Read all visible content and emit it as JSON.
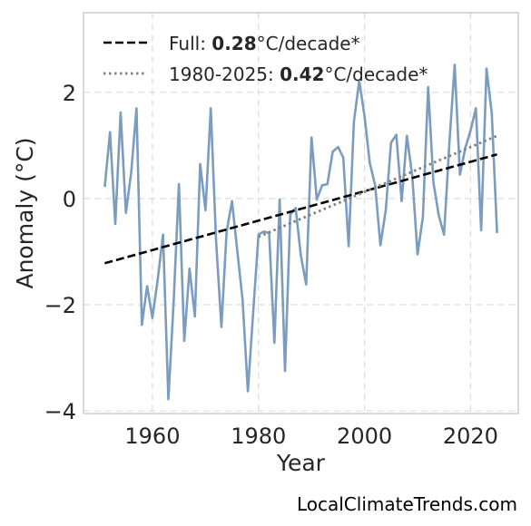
{
  "chart_data": {
    "type": "line",
    "xlabel": "Year",
    "ylabel": "Anomaly (°C)",
    "xlim": [
      1947,
      2029
    ],
    "ylim": [
      -4.05,
      3.5
    ],
    "xticks": [
      1960,
      1980,
      2000,
      2020
    ],
    "yticks": [
      -4,
      -2,
      0,
      2
    ],
    "ytick_labels": [
      "−4",
      "−2",
      "0",
      "2"
    ],
    "grid": true,
    "legend_placement": "top-left",
    "series": [
      {
        "kind": "anomaly",
        "color": "#7b9cbf",
        "x": [
          1951,
          1952,
          1953,
          1954,
          1955,
          1956,
          1957,
          1958,
          1959,
          1960,
          1961,
          1962,
          1963,
          1964,
          1965,
          1966,
          1967,
          1968,
          1969,
          1970,
          1971,
          1972,
          1973,
          1974,
          1975,
          1976,
          1977,
          1978,
          1979,
          1980,
          1981,
          1982,
          1983,
          1984,
          1985,
          1986,
          1987,
          1988,
          1989,
          1990,
          1991,
          1992,
          1993,
          1994,
          1995,
          1996,
          1997,
          1998,
          1999,
          2000,
          2001,
          2002,
          2003,
          2004,
          2005,
          2006,
          2007,
          2008,
          2009,
          2010,
          2011,
          2012,
          2013,
          2014,
          2015,
          2016,
          2017,
          2018,
          2019,
          2020,
          2021,
          2022,
          2023,
          2024,
          2025
        ],
        "y": [
          0.22,
          1.25,
          -0.48,
          1.62,
          -0.27,
          0.5,
          1.7,
          -2.38,
          -1.65,
          -2.25,
          -1.52,
          -0.68,
          -3.78,
          -1.95,
          0.27,
          -2.68,
          -1.32,
          -2.22,
          0.65,
          -0.22,
          1.7,
          -0.78,
          -2.42,
          -0.62,
          -0.05,
          -0.98,
          -1.9,
          -3.63,
          -2.15,
          -0.68,
          -0.62,
          -0.65,
          -2.72,
          -0.02,
          -3.25,
          -0.3,
          -0.18,
          -1.08,
          -1.62,
          1.15,
          -0.02,
          0.25,
          0.27,
          0.88,
          0.97,
          0.77,
          -0.9,
          1.45,
          2.22,
          1.55,
          0.67,
          0.25,
          -0.88,
          -0.22,
          1.05,
          1.2,
          -0.05,
          1.18,
          0.42,
          -1.05,
          -0.35,
          2.1,
          0.3,
          -0.32,
          -0.68,
          1.05,
          2.52,
          0.45,
          0.95,
          1.28,
          1.7,
          -0.6,
          2.45,
          1.6,
          -0.65
        ]
      },
      {
        "kind": "trend",
        "color": "#000000",
        "dash": "dashed",
        "x": [
          1951,
          2025
        ],
        "y": [
          -1.22,
          0.83
        ],
        "legend_label": "Full: ",
        "legend_value": "0.28",
        "legend_unit": "°C/decade*"
      },
      {
        "kind": "trend",
        "color": "#808080",
        "dash": "dotted",
        "x": [
          1980,
          2025
        ],
        "y": [
          -0.72,
          1.18
        ],
        "legend_label": "1980-2025: ",
        "legend_value": "0.42",
        "legend_unit": "°C/decade*"
      }
    ]
  },
  "watermark": "LocalClimateTrends.com"
}
